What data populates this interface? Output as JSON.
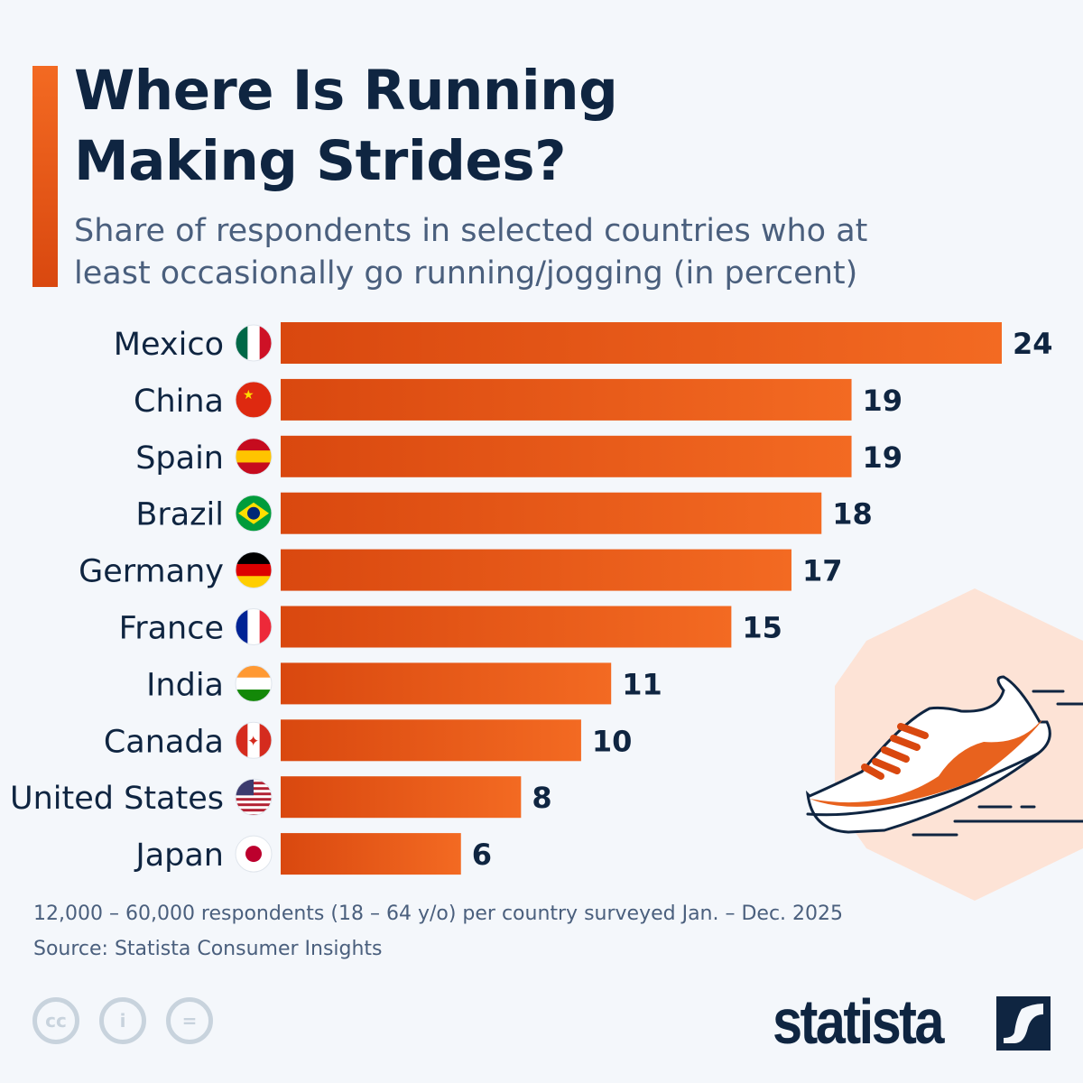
{
  "header": {
    "title_line1": "Where Is Running",
    "title_line2": "Making Strides?",
    "subtitle": "Share of respondents in selected countries who at least occasionally go running/jogging (in percent)"
  },
  "chart_data": {
    "type": "bar",
    "orientation": "horizontal",
    "categories": [
      "Mexico",
      "China",
      "Spain",
      "Brazil",
      "Germany",
      "France",
      "India",
      "Canada",
      "United States",
      "Japan"
    ],
    "values": [
      24,
      19,
      19,
      18,
      17,
      15,
      11,
      10,
      8,
      6
    ],
    "xlim": [
      0,
      24
    ],
    "grid": false,
    "bar_color": "#f36a22",
    "bar_color_dark": "#d9480f"
  },
  "footer": {
    "note": "12,000 – 60,000 respondents (18 – 64 y/o) per country surveyed Jan. – Dec. 2025",
    "source": "Source: Statista Consumer Insights",
    "logo": "statista"
  },
  "icons": [
    "cc-icon",
    "attribution-icon",
    "no-derivatives-icon",
    "running-shoe-icon"
  ]
}
